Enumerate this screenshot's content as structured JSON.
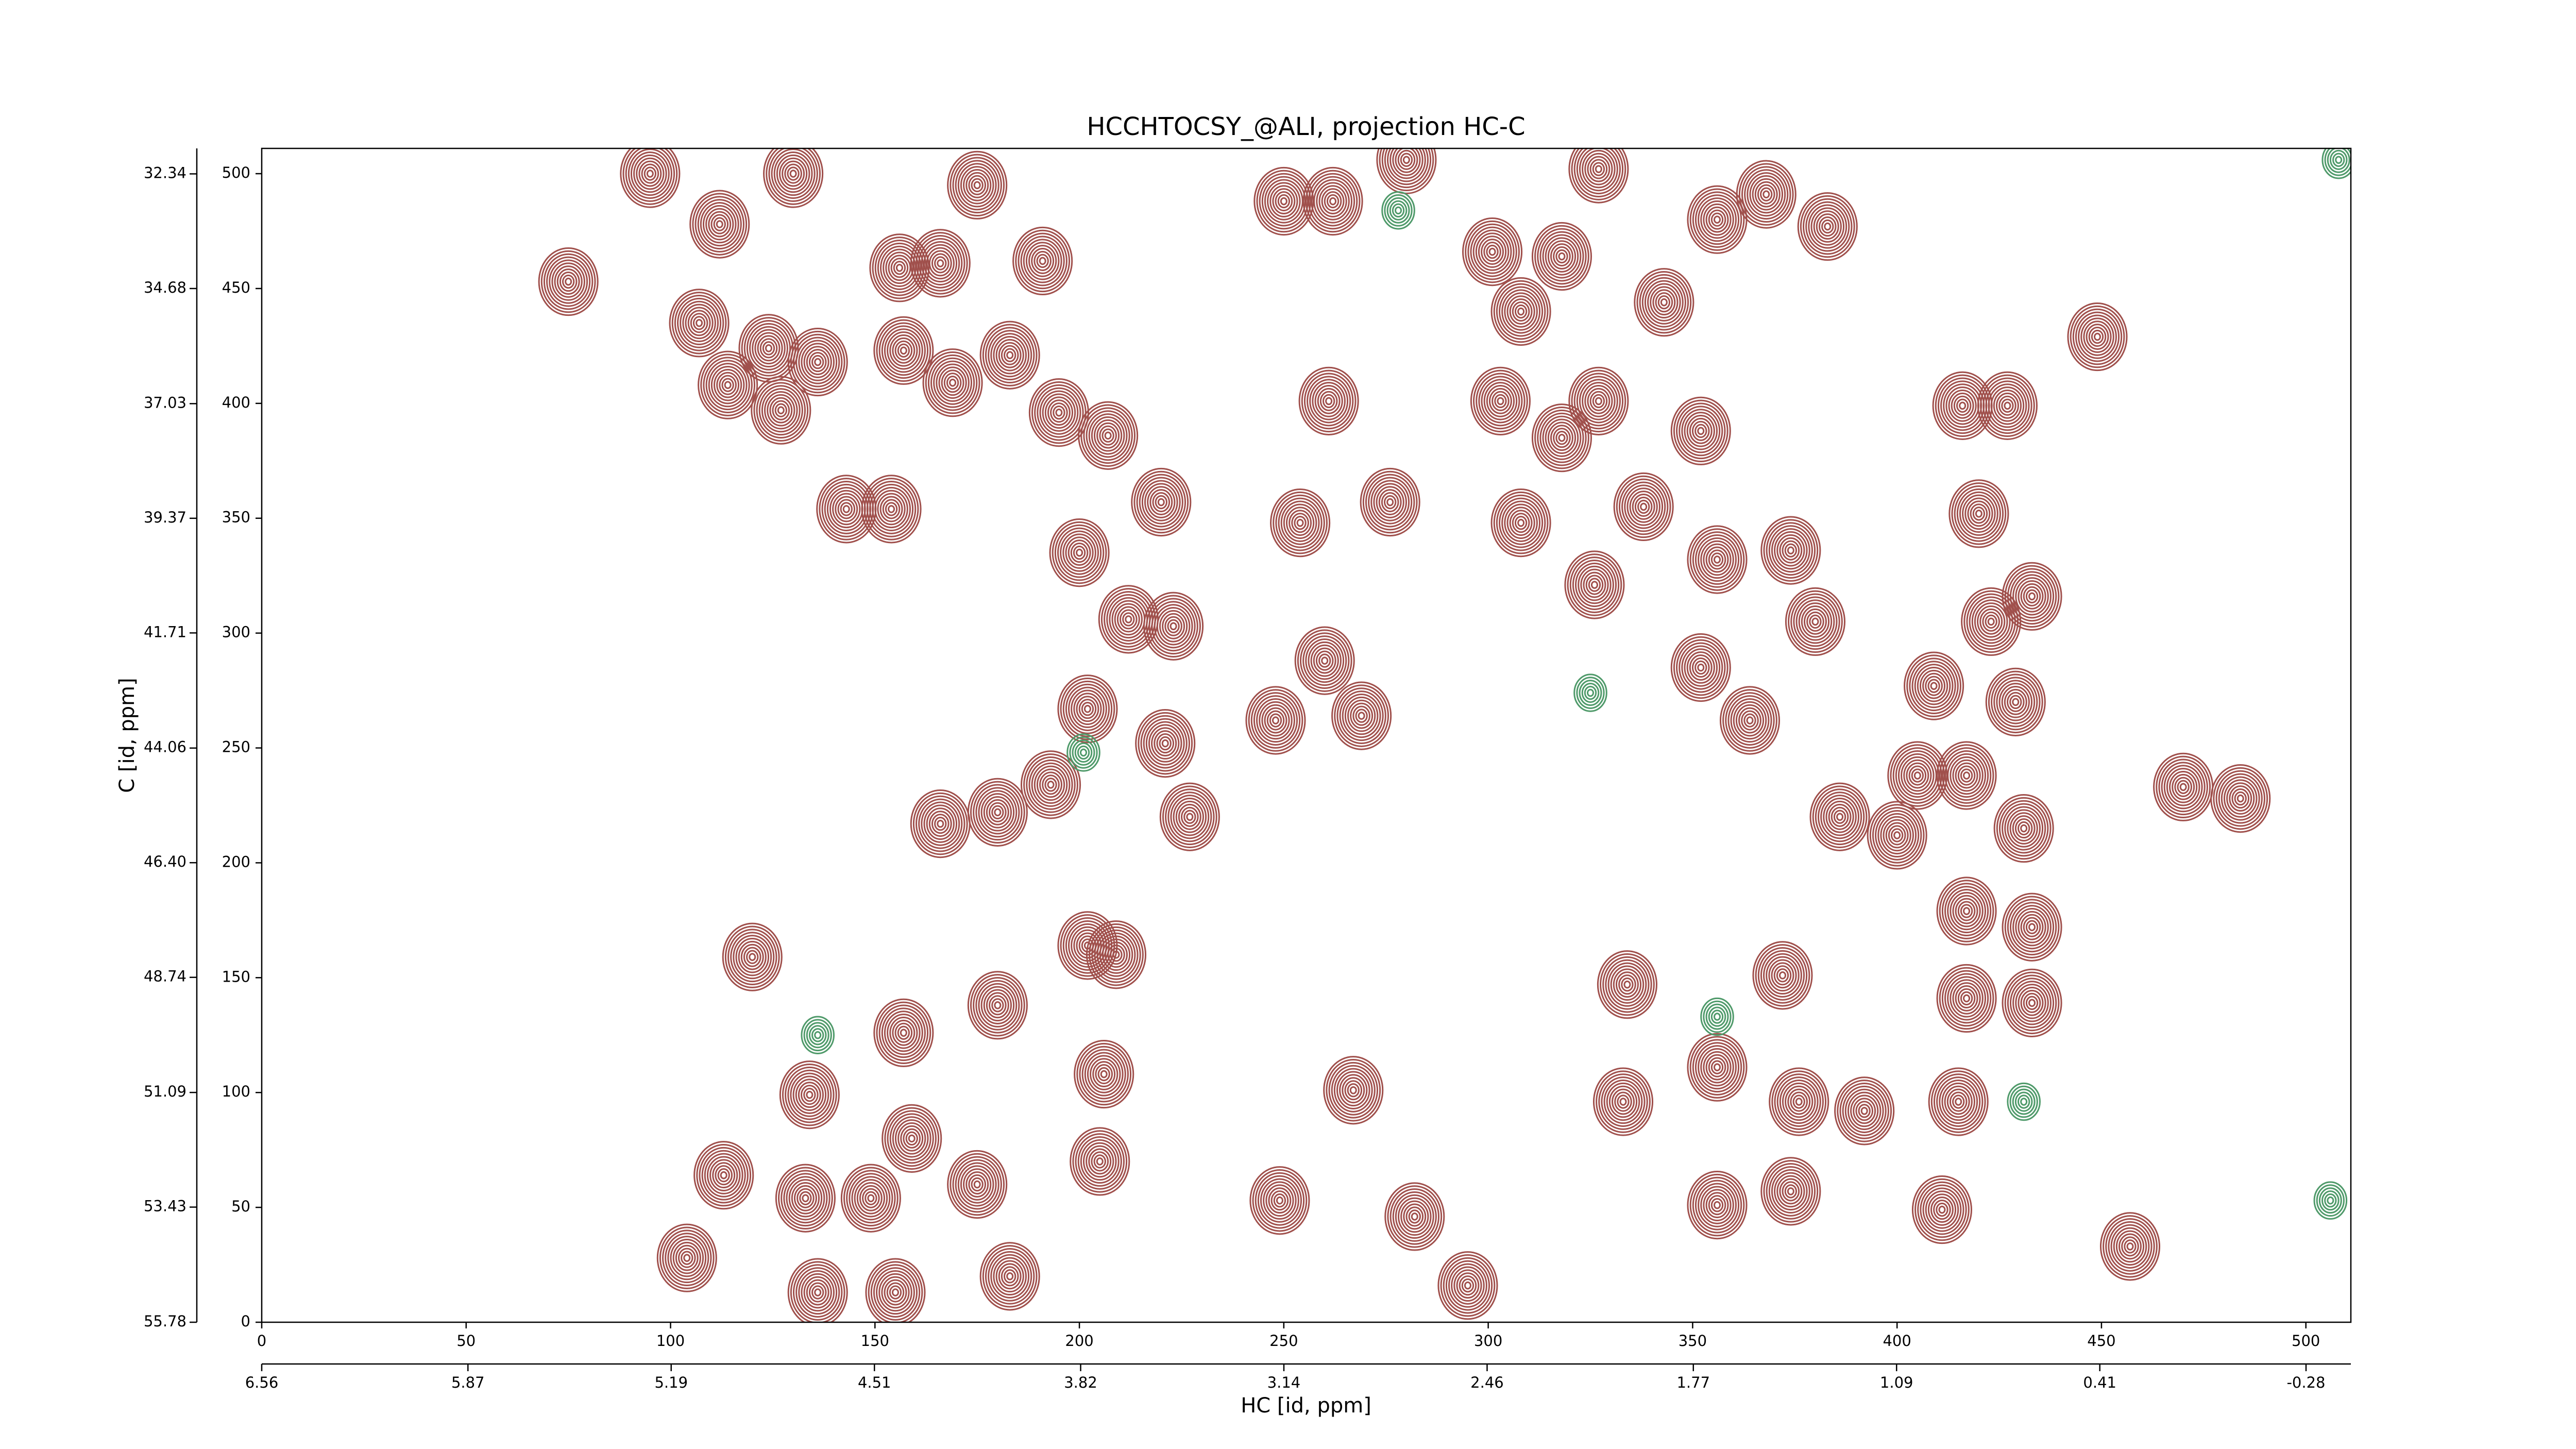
{
  "chart_data": {
    "type": "contour",
    "title": "HCCHTOCSY_@ALI, projection HC-C",
    "xlabel": "HC [id, ppm]",
    "ylabel": "C [id, ppm]",
    "xlim": [
      0,
      511
    ],
    "xticks": [
      0,
      50,
      100,
      150,
      200,
      250,
      300,
      350,
      400,
      450,
      500
    ],
    "ylim": [
      0,
      511
    ],
    "yticks": [
      0,
      50,
      100,
      150,
      200,
      250,
      300,
      350,
      400,
      450,
      500
    ],
    "x2lim": [
      6.56,
      -0.43
    ],
    "x2ticks": [
      6.56,
      5.87,
      5.19,
      4.51,
      3.82,
      3.14,
      2.46,
      1.77,
      1.09,
      0.41,
      -0.28
    ],
    "y2lim": [
      55.78,
      31.82
    ],
    "y2ticks": [
      55.78,
      53.43,
      51.09,
      48.74,
      {
        "value": 46.4,
        "label": "46.40"
      },
      44.06,
      41.71,
      39.37,
      37.03,
      34.68,
      32.34
    ],
    "series": [
      {
        "color": "#a0504c",
        "x": [
          75,
          107,
          112,
          95,
          130,
          124,
          136,
          114,
          127,
          156,
          157,
          166,
          143,
          154,
          169,
          183,
          191,
          175,
          195,
          207,
          200,
          220,
          212,
          223,
          202,
          221,
          193,
          180,
          166,
          227,
          260,
          248,
          269,
          261,
          276,
          254,
          262,
          250,
          280,
          301,
          308,
          318,
          327,
          343,
          356,
          368,
          383,
          352,
          303,
          327,
          318,
          308,
          338,
          356,
          374,
          380,
          352,
          364,
          326,
          449,
          416,
          427,
          420,
          433,
          423,
          409,
          429,
          405,
          417,
          386,
          400,
          431,
          417,
          433,
          372,
          356,
          376,
          392,
          417,
          433,
          415,
          411,
          374,
          356,
          334,
          333,
          470,
          484,
          457,
          202,
          209,
          180,
          157,
          134,
          159,
          205,
          206,
          133,
          113,
          149,
          175,
          104,
          136,
          183,
          155,
          249,
          267,
          282,
          295,
          120
        ],
        "y": [
          453,
          435,
          478,
          500,
          500,
          424,
          418,
          408,
          397,
          459,
          423,
          461,
          354,
          354,
          409,
          421,
          462,
          495,
          396,
          386,
          335,
          357,
          306,
          303,
          267,
          252,
          234,
          222,
          217,
          220,
          288,
          262,
          264,
          401,
          357,
          348,
          488,
          488,
          506,
          466,
          440,
          464,
          502,
          444,
          480,
          491,
          477,
          388,
          401,
          401,
          385,
          348,
          355,
          332,
          336,
          305,
          285,
          262,
          321,
          429,
          399,
          399,
          352,
          316,
          305,
          277,
          270,
          238,
          238,
          220,
          212,
          215,
          179,
          172,
          151,
          111,
          96,
          92,
          141,
          139,
          96,
          49,
          57,
          51,
          147,
          96,
          233,
          228,
          33,
          164,
          160,
          138,
          126,
          99,
          80,
          70,
          108,
          54,
          64,
          54,
          60,
          28,
          13,
          20,
          13,
          53,
          101,
          46,
          16,
          159
        ]
      },
      {
        "color": "#4f9a6a",
        "x": [
          325,
          278,
          136,
          431,
          506,
          356,
          201,
          508
        ],
        "y": [
          274,
          484,
          125,
          96,
          53,
          133,
          248,
          506
        ]
      }
    ]
  }
}
